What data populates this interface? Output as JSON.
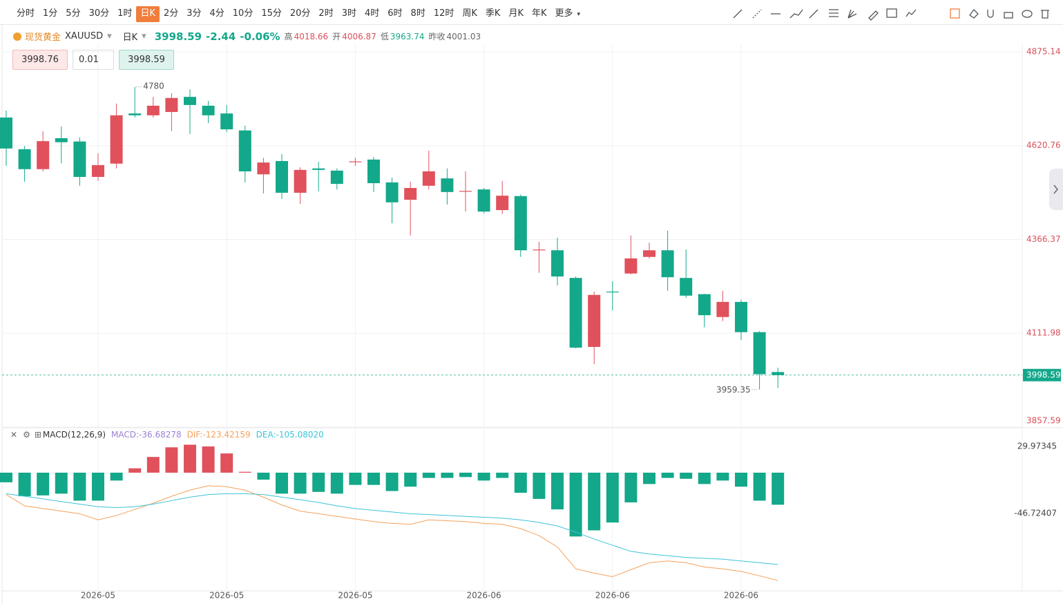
{
  "toolbar": {
    "periods": [
      "分时",
      "1分",
      "5分",
      "30分",
      "1时",
      "日K",
      "2分",
      "3分",
      "4分",
      "10分",
      "15分",
      "20分",
      "2时",
      "3时",
      "4时",
      "6时",
      "8时",
      "12时",
      "周K",
      "季K",
      "月K",
      "年K"
    ],
    "active_index": 5,
    "more": "更多"
  },
  "quote": {
    "name": "现货黄金",
    "symbol": "XAUUSD",
    "period": "日K",
    "change": "-2.44",
    "change_pct": "-0.06%",
    "high_label": "高",
    "open_label": "开",
    "low_label": "低",
    "prev_close_label": "昨收"
  },
  "order": {
    "sell": "3998.76",
    "lot": "0.01",
    "buy": "3998.59"
  },
  "chart_data": [
    {
      "type": "candlestick",
      "up_color": "#e0515c",
      "down_color": "#13a88a",
      "ytick_color": "#d9505a",
      "categories": [
        null,
        null,
        null,
        null,
        null,
        "2026-05",
        null,
        null,
        null,
        null,
        null,
        null,
        "2026-05",
        null,
        null,
        null,
        null,
        null,
        null,
        "2026-05",
        null,
        null,
        null,
        null,
        null,
        null,
        "2026-06",
        null,
        null,
        null,
        null,
        null,
        null,
        "2026-06",
        null,
        null,
        null,
        null,
        null,
        null,
        "2026-06",
        null,
        null
      ],
      "open": [
        4697,
        4611,
        4557,
        4641,
        4632,
        4536,
        4572,
        4708,
        4703,
        4712,
        4753,
        4729,
        4708,
        4662,
        4543,
        4579,
        4493,
        4559,
        4553,
        4576,
        4583,
        4521,
        4474,
        4512,
        4532,
        4497,
        4502,
        4446,
        4484,
        4337,
        4337,
        4262,
        4075,
        4225,
        4274,
        4319,
        4337,
        4262,
        4218,
        4156,
        4197,
        4115,
        4006.87
      ],
      "high": [
        4716,
        4620,
        4660,
        4673,
        4643,
        4600,
        4735,
        4780,
        4753,
        4763,
        4773.39,
        4742,
        4731,
        4675,
        4588,
        4598,
        4562,
        4577,
        4559,
        4588,
        4590,
        4534,
        4523,
        4607,
        4559,
        4551,
        4506,
        4525,
        4488,
        4360,
        4371,
        4266,
        4225,
        4253,
        4377,
        4358,
        4390,
        4339,
        4219,
        4227,
        4203,
        4118,
        4018.66
      ],
      "low": [
        4566,
        4523,
        4551,
        4573,
        4512,
        4525,
        4559,
        4697,
        4697,
        4660,
        4652,
        4682,
        4658,
        4521,
        4491,
        4476,
        4463,
        4497,
        4502,
        4566,
        4495,
        4410,
        4377,
        4502,
        4461,
        4442,
        4437,
        4435,
        4319,
        4276,
        4242,
        4071,
        4028,
        4174,
        4272,
        4315,
        4227,
        4208,
        4128,
        4145,
        4094,
        3959.35,
        3963.74
      ],
      "close": [
        4613,
        4557,
        4633,
        4630,
        4536,
        4568,
        4703,
        4703,
        4729,
        4750,
        4731,
        4703,
        4665,
        4551,
        4575,
        4493,
        4555,
        4555,
        4517,
        4578,
        4519,
        4467,
        4506,
        4551,
        4495,
        4498,
        4442,
        4485,
        4337,
        4339,
        4266,
        4073,
        4216,
        4223,
        4315,
        4337,
        4264,
        4214,
        4161,
        4197,
        4115,
        4001.03,
        3998.59
      ],
      "ylim": [
        3857.59,
        4875.14
      ],
      "yticks": [
        4875.14,
        4620.76,
        4366.37,
        4111.98,
        3857.59
      ],
      "grid": true
    },
    {
      "type": "macd",
      "title": "MACD(12,26,9)",
      "ylim": [
        -135,
        35
      ],
      "yticks": [
        29.97345,
        -46.72407
      ],
      "series": [
        {
          "legend": "MACD:-36.68278",
          "color": "#9b7fd4",
          "up_color": "#e0515c",
          "down_color": "#13a88a",
          "values": [
            -11,
            -27,
            -26,
            -24,
            -32,
            -32,
            -9,
            5,
            18,
            29,
            32,
            30,
            22,
            1,
            -8,
            -24,
            -24,
            -22,
            -24,
            -14,
            -14,
            -21,
            -16,
            -6,
            -6,
            -5,
            -9,
            -6,
            -23,
            -30,
            -42,
            -73,
            -66,
            -57,
            -34,
            -13,
            -6,
            -7,
            -13,
            -9,
            -16,
            -32,
            -36.68278
          ]
        },
        {
          "legend": "DIF:-123.42159",
          "color": "#f5a05a",
          "values": [
            -25,
            -38,
            -41,
            -44,
            -47,
            -54,
            -49,
            -42,
            -35,
            -27,
            -20,
            -15,
            -16,
            -20,
            -28,
            -37,
            -44,
            -47,
            -50,
            -53,
            -56,
            -58,
            -59,
            -54,
            -55,
            -56,
            -58,
            -59,
            -64,
            -72,
            -85,
            -110,
            -115,
            -119,
            -111,
            -103,
            -101,
            -103,
            -108,
            -110,
            -113,
            -118,
            -123.42159
          ]
        },
        {
          "legend": "DEA:-105.08020",
          "color": "#3cc3d6",
          "values": [
            -24,
            -27,
            -30,
            -33,
            -36,
            -39,
            -40,
            -39,
            -36,
            -32,
            -28,
            -25,
            -24,
            -24,
            -25,
            -28,
            -31,
            -34,
            -38,
            -41,
            -43,
            -45,
            -47,
            -48,
            -49,
            -50,
            -51,
            -52,
            -54,
            -57,
            -61,
            -68,
            -76,
            -83,
            -90,
            -93,
            -95,
            -97,
            -98,
            -99,
            -101,
            -103,
            -105.0802
          ]
        }
      ]
    }
  ]
}
